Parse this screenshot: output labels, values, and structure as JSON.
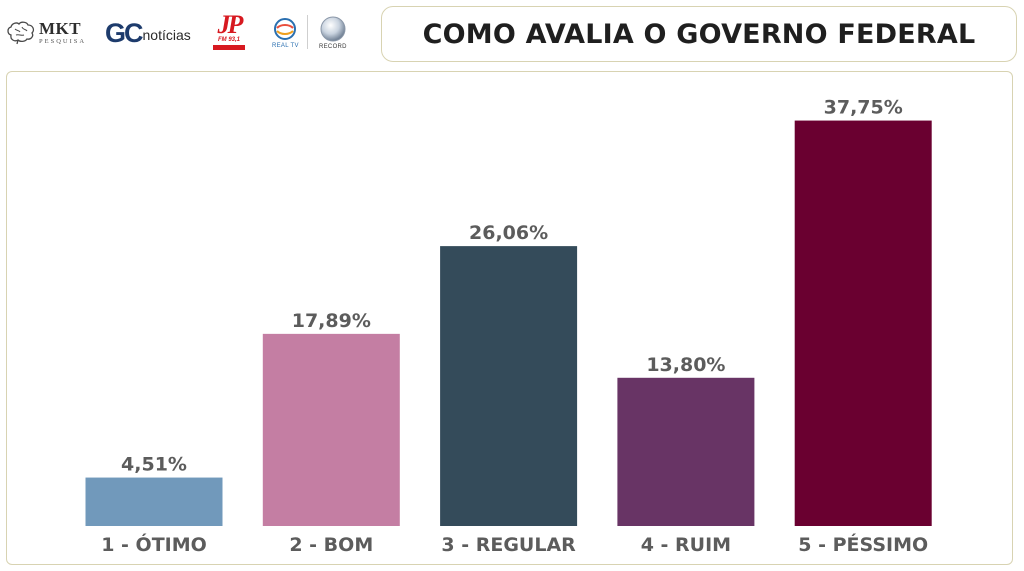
{
  "header": {
    "logos": [
      {
        "name": "mkt-pesquisa-logo",
        "text": "MKT",
        "subtext": "PESQUISA"
      },
      {
        "name": "gc-noticias-logo",
        "text": "GC",
        "subtext": "notícias"
      },
      {
        "name": "jovem-pan-fm-logo",
        "text": "JP",
        "subtext": "FM 93,1"
      },
      {
        "name": "real-tv-logo",
        "text": "REAL TV"
      },
      {
        "name": "record-logo",
        "text": "RECORD"
      }
    ],
    "title": "COMO AVALIA O GOVERNO FEDERAL"
  },
  "chart_data": {
    "type": "bar",
    "title": "COMO AVALIA O GOVERNO FEDERAL",
    "categories": [
      "1 - ÓTIMO",
      "2 - BOM",
      "3 - REGULAR",
      "4 - RUIM",
      "5 - PÉSSIMO"
    ],
    "values": [
      4.51,
      17.89,
      26.06,
      13.8,
      37.75
    ],
    "value_labels": [
      "4,51%",
      "17,89%",
      "26,06%",
      "13,80%",
      "37,75%"
    ],
    "colors": [
      "#7199bb",
      "#c47ea3",
      "#344b5a",
      "#683465",
      "#6a0030"
    ],
    "ylim": [
      0,
      40
    ],
    "grid": false,
    "legend": "none"
  }
}
